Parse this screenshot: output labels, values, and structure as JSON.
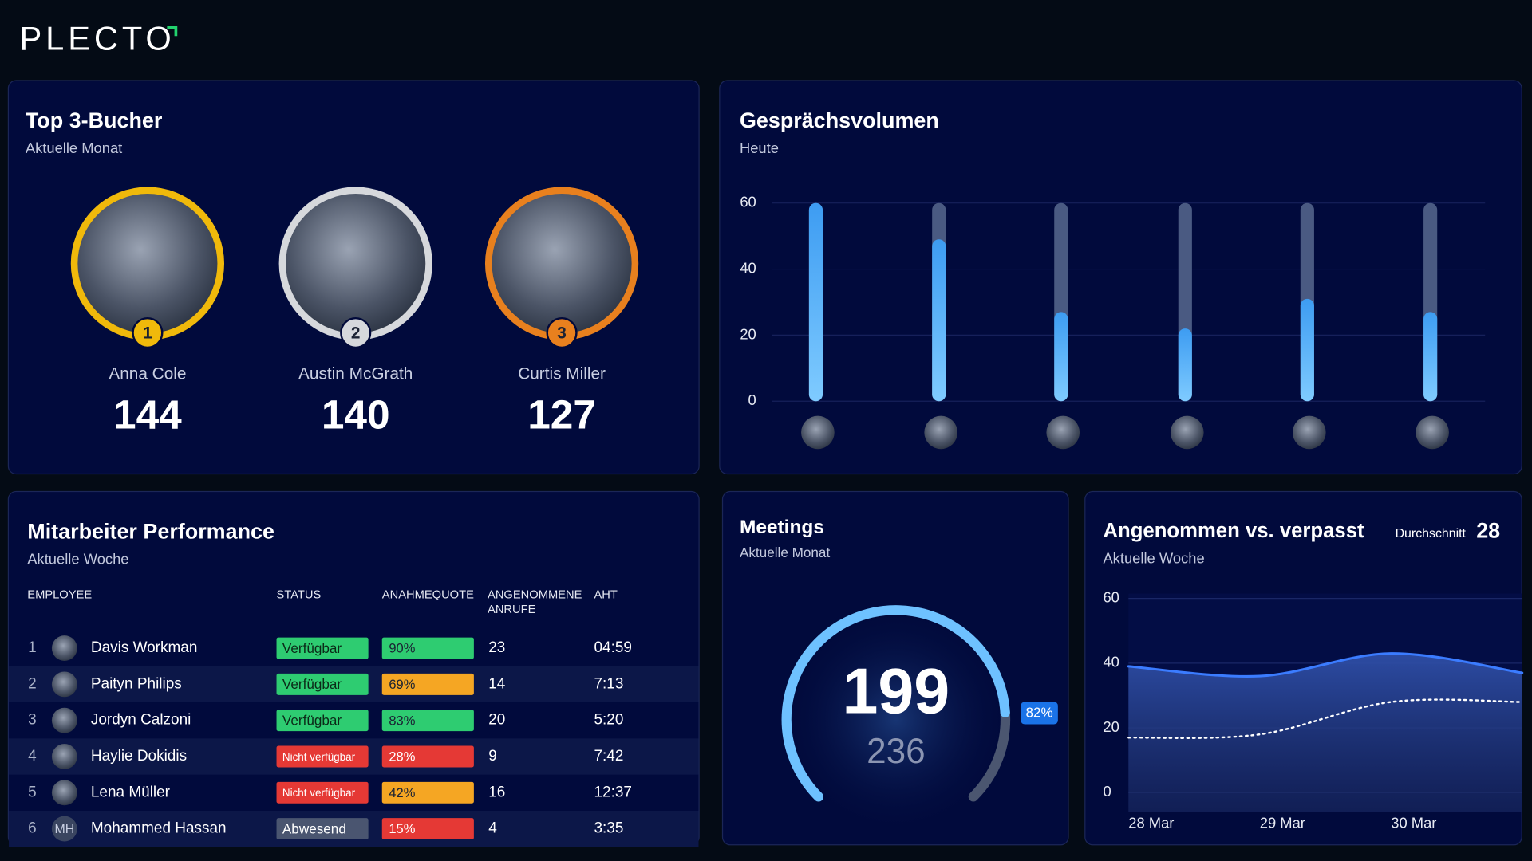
{
  "header": {
    "logo": "PLECTO"
  },
  "top_bookers": {
    "title": "Top 3-Bucher",
    "subtitle": "Aktuelle Monat",
    "people": [
      {
        "rank": 1,
        "name": "Anna Cole",
        "value": 144,
        "ring_color": "#f0b90b"
      },
      {
        "rank": 2,
        "name": "Austin McGrath",
        "value": 140,
        "ring_color": "#d6d8dc"
      },
      {
        "rank": 3,
        "name": "Curtis Miller",
        "value": 127,
        "ring_color": "#e8801e"
      }
    ]
  },
  "call_volume": {
    "type": "bar",
    "title": "Gesprächsvolumen",
    "subtitle": "Heute",
    "categories": [
      null,
      null,
      null,
      null,
      null,
      null
    ],
    "values": [
      60,
      49,
      27,
      22,
      31,
      27
    ],
    "ylim": [
      0,
      60
    ],
    "yticks": [
      0,
      20,
      40,
      60
    ],
    "color": "#5db4fb",
    "track_color": "#4a5a82",
    "grid": true
  },
  "performance": {
    "title": "Mitarbeiter Performance",
    "subtitle": "Aktuelle Woche",
    "columns": [
      "EMPLOYEE",
      "STATUS",
      "ANAHMEQUOTE",
      "ANGENOMMENE ANRUFE",
      "AHT"
    ],
    "rows": [
      {
        "rank": 1,
        "name": "Davis Workman",
        "status": "Verfügbar",
        "status_color": "#2ecc71",
        "quote": "90%",
        "quote_color": "#2ecc71",
        "calls": 23,
        "aht": "04:59"
      },
      {
        "rank": 2,
        "name": "Paityn Philips",
        "status": "Verfügbar",
        "status_color": "#2ecc71",
        "quote": "69%",
        "quote_color": "#f5a623",
        "calls": 14,
        "aht": "7:13"
      },
      {
        "rank": 3,
        "name": "Jordyn Calzoni",
        "status": "Verfügbar",
        "status_color": "#2ecc71",
        "quote": "83%",
        "quote_color": "#2ecc71",
        "calls": 20,
        "aht": "5:20"
      },
      {
        "rank": 4,
        "name": "Haylie Dokidis",
        "status": "Nicht verfügbar",
        "status_color": "#e53935",
        "quote": "28%",
        "quote_color": "#e53935",
        "calls": 9,
        "aht": "7:42"
      },
      {
        "rank": 5,
        "name": "Lena Müller",
        "status": "Nicht verfügbar",
        "status_color": "#e53935",
        "quote": "42%",
        "quote_color": "#f5a623",
        "calls": 16,
        "aht": "12:37"
      },
      {
        "rank": 6,
        "initials": "MH",
        "name": "Mohammed Hassan",
        "status": "Abwesend",
        "status_color": "#4a5570",
        "quote": "15%",
        "quote_color": "#e53935",
        "calls": 4,
        "aht": "3:35"
      }
    ]
  },
  "meetings": {
    "type": "gauge",
    "title": "Meetings",
    "subtitle": "Aktuelle Monat",
    "value": 199,
    "target": 236,
    "ratio": 82,
    "ratio_label": "82%",
    "color": "#6ec1ff",
    "track_color": "#4b5670"
  },
  "answered_vs_missed": {
    "type": "line",
    "title": "Angenommen vs. verpasst",
    "subtitle": "Aktuelle Woche",
    "average_label": "Durchschnitt",
    "average": 28,
    "categories": [
      "28 Mar",
      "29 Mar",
      "30 Mar",
      null
    ],
    "series": [
      {
        "color": "#3b7cff",
        "values": [
          39,
          36,
          43,
          37
        ]
      },
      {
        "color": "#ffffff",
        "style": "dotted",
        "values": [
          17,
          18,
          28,
          28
        ]
      }
    ],
    "ylim": [
      0,
      60
    ],
    "yticks": [
      0,
      20,
      40,
      60
    ],
    "grid": true
  }
}
